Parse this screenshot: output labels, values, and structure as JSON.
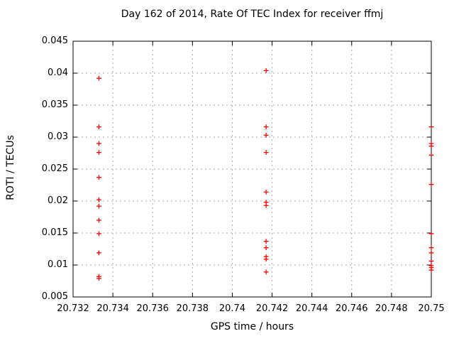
{
  "chart_data": {
    "type": "scatter",
    "title": "Day 162 of 2014, Rate Of TEC Index for receiver ffmj",
    "xlabel": "GPS time / hours",
    "ylabel": "ROTI / TECUs",
    "xlim": [
      20.732,
      20.75
    ],
    "ylim": [
      0.005,
      0.045
    ],
    "xticks": [
      20.732,
      20.734,
      20.736,
      20.738,
      20.74,
      20.742,
      20.744,
      20.746,
      20.748,
      20.75
    ],
    "xtick_labels": [
      "20.732",
      "20.734",
      "20.736",
      "20.738",
      "20.74",
      "20.742",
      "20.744",
      "20.746",
      "20.748",
      "20.75"
    ],
    "yticks": [
      0.005,
      0.01,
      0.015,
      0.02,
      0.025,
      0.03,
      0.035,
      0.04,
      0.045
    ],
    "ytick_labels": [
      "0.005",
      "0.01",
      "0.015",
      "0.02",
      "0.025",
      "0.03",
      "0.035",
      "0.04",
      "0.045"
    ],
    "grid": true,
    "legend": "none",
    "marker": "plus",
    "marker_color": "#ff0000",
    "grid_color": "#a8a8a8",
    "axis_color": "#000000",
    "series": [
      {
        "name": "ROTI",
        "points": [
          {
            "x": 20.7333,
            "y": 0.0392
          },
          {
            "x": 20.7333,
            "y": 0.0316
          },
          {
            "x": 20.7333,
            "y": 0.029
          },
          {
            "x": 20.7333,
            "y": 0.0276
          },
          {
            "x": 20.7333,
            "y": 0.0237
          },
          {
            "x": 20.7333,
            "y": 0.0202
          },
          {
            "x": 20.7333,
            "y": 0.0192
          },
          {
            "x": 20.7333,
            "y": 0.017
          },
          {
            "x": 20.7333,
            "y": 0.0149
          },
          {
            "x": 20.7333,
            "y": 0.0119
          },
          {
            "x": 20.7333,
            "y": 0.0082
          },
          {
            "x": 20.7333,
            "y": 0.0079
          },
          {
            "x": 20.7417,
            "y": 0.0404
          },
          {
            "x": 20.7417,
            "y": 0.0316
          },
          {
            "x": 20.7417,
            "y": 0.0303
          },
          {
            "x": 20.7417,
            "y": 0.0276
          },
          {
            "x": 20.7417,
            "y": 0.0214
          },
          {
            "x": 20.7417,
            "y": 0.0198
          },
          {
            "x": 20.7417,
            "y": 0.0193
          },
          {
            "x": 20.7417,
            "y": 0.0137
          },
          {
            "x": 20.7417,
            "y": 0.0127
          },
          {
            "x": 20.7417,
            "y": 0.0113
          },
          {
            "x": 20.7417,
            "y": 0.0109
          },
          {
            "x": 20.7417,
            "y": 0.0089
          },
          {
            "x": 20.75,
            "y": 0.0316
          },
          {
            "x": 20.75,
            "y": 0.029
          },
          {
            "x": 20.75,
            "y": 0.0286
          },
          {
            "x": 20.75,
            "y": 0.0272
          },
          {
            "x": 20.75,
            "y": 0.0226
          },
          {
            "x": 20.75,
            "y": 0.0149
          },
          {
            "x": 20.75,
            "y": 0.0127
          },
          {
            "x": 20.75,
            "y": 0.0119
          },
          {
            "x": 20.75,
            "y": 0.0106
          },
          {
            "x": 20.75,
            "y": 0.0099
          },
          {
            "x": 20.75,
            "y": 0.0096
          },
          {
            "x": 20.75,
            "y": 0.0092
          }
        ]
      }
    ]
  }
}
